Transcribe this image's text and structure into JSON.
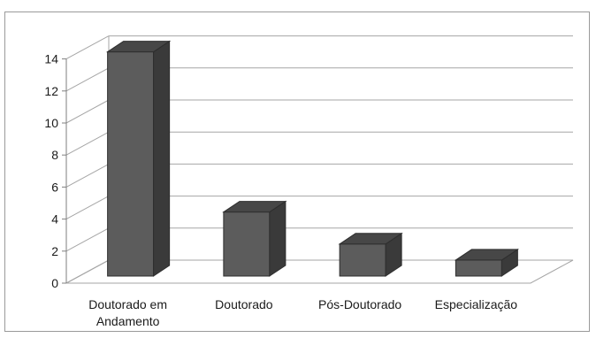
{
  "chart_data": {
    "type": "bar",
    "style": "3d-column",
    "title": "",
    "xlabel": "",
    "ylabel": "",
    "categories": [
      [
        "Doutorado em",
        "Andamento"
      ],
      [
        "Doutorado"
      ],
      [
        "Pós-Doutorado"
      ],
      [
        "Especialização"
      ]
    ],
    "values": [
      14,
      4,
      2,
      1
    ],
    "ylim": [
      0,
      14
    ],
    "yticks": [
      0,
      2,
      4,
      6,
      8,
      10,
      12,
      14
    ],
    "grid": true,
    "legend": "none",
    "colors": {
      "bar_front": "#5c5c5c",
      "bar_side": "#3a3a3a",
      "bar_top": "#474747",
      "gridline": "#a6a6a6",
      "frame": "#9a9a9a"
    }
  }
}
